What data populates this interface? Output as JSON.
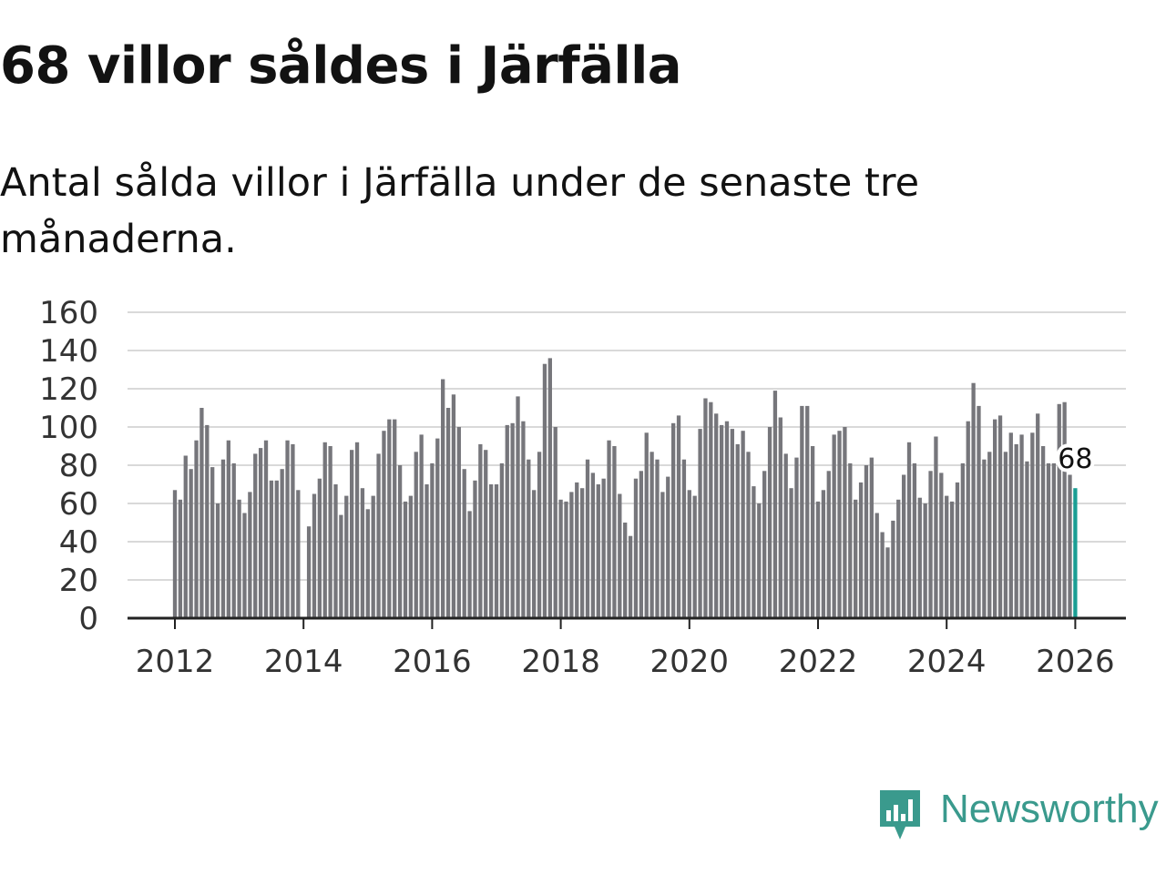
{
  "header": {
    "title": "68 villor såldes i Järfälla",
    "subtitle": "Antal sålda villor i Järfälla under de senaste tre månaderna."
  },
  "brand": {
    "name": "Newsworthy",
    "color": "#3a9a8d",
    "icon": "newsworthy-logo-icon"
  },
  "colors": {
    "bar": "#76767b",
    "highlight": "#1a9e94",
    "grid": "#d9d9d9",
    "axis": "#222222"
  },
  "chart_data": {
    "type": "bar",
    "title": "68 villor såldes i Järfälla",
    "xlabel": "",
    "ylabel": "",
    "ylim": [
      0,
      160
    ],
    "yticks": [
      "0",
      "20",
      "40",
      "60",
      "80",
      "100",
      "120",
      "140",
      "160"
    ],
    "xticks": [
      "2012",
      "2014",
      "2016",
      "2018",
      "2020",
      "2022",
      "2024",
      "2026"
    ],
    "x_start": "2012-01",
    "x_end": "2026-01",
    "highlight_label": "68",
    "values": [
      67,
      62,
      85,
      78,
      93,
      110,
      101,
      79,
      60,
      83,
      93,
      81,
      62,
      55,
      66,
      86,
      89,
      93,
      72,
      72,
      78,
      93,
      91,
      67,
      null,
      48,
      65,
      73,
      92,
      90,
      70,
      54,
      64,
      88,
      92,
      68,
      57,
      64,
      86,
      98,
      104,
      104,
      80,
      61,
      64,
      87,
      96,
      70,
      81,
      94,
      125,
      110,
      117,
      100,
      78,
      56,
      72,
      91,
      88,
      70,
      70,
      81,
      101,
      102,
      116,
      103,
      83,
      67,
      87,
      133,
      136,
      100,
      62,
      61,
      66,
      71,
      68,
      83,
      76,
      70,
      73,
      93,
      90,
      65,
      50,
      43,
      73,
      77,
      97,
      87,
      83,
      66,
      74,
      102,
      106,
      83,
      67,
      64,
      99,
      115,
      113,
      107,
      101,
      103,
      99,
      91,
      98,
      87,
      69,
      60,
      77,
      100,
      119,
      105,
      86,
      68,
      84,
      111,
      111,
      90,
      61,
      67,
      77,
      96,
      98,
      100,
      81,
      62,
      71,
      80,
      84,
      55,
      45,
      37,
      51,
      62,
      75,
      92,
      81,
      63,
      60,
      77,
      95,
      76,
      64,
      61,
      71,
      81,
      103,
      123,
      111,
      83,
      87,
      104,
      106,
      87,
      97,
      91,
      96,
      82,
      97,
      107,
      90,
      81,
      81,
      112,
      113,
      75,
      68
    ]
  }
}
